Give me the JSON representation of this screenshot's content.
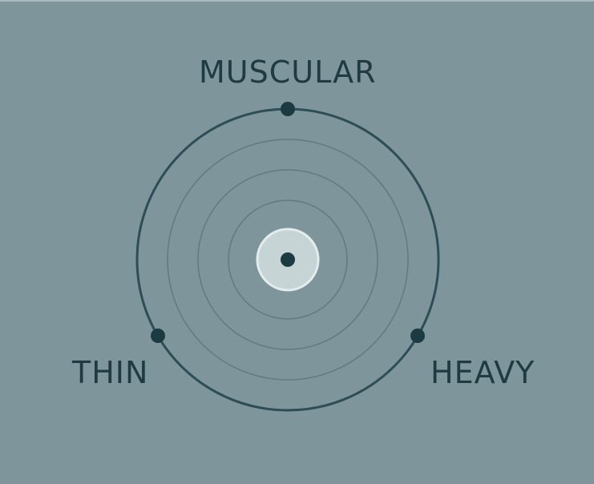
{
  "body_type_selector": {
    "options": {
      "top": "MUSCULAR",
      "left": "THIN",
      "right": "HEAVY"
    }
  },
  "colors": {
    "background": "#7e969b",
    "ring": "#2b4a51",
    "inner_ring": "#5f797f",
    "dot": "#1c3a41",
    "center_fill": "#c4d3d5"
  }
}
